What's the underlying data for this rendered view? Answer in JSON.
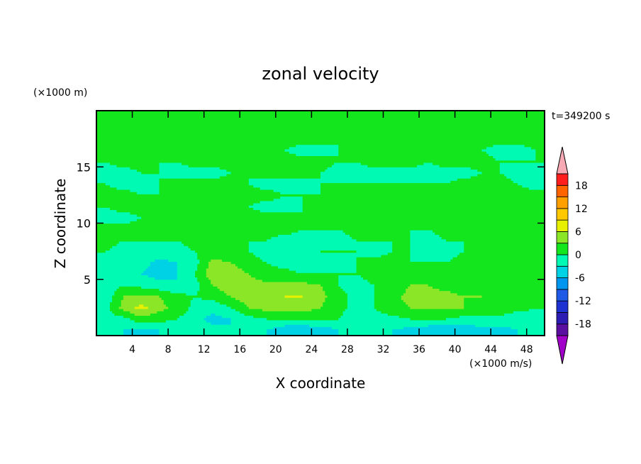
{
  "chart_data": {
    "type": "heatmap",
    "title": "zonal velocity",
    "xlabel": "X coordinate",
    "ylabel": "Z coordinate",
    "x_unit_label": "(×1000 m/s)",
    "y_unit_label": "(×1000 m)",
    "time_label": "t=349200 s",
    "xlim": [
      0,
      50
    ],
    "ylim": [
      0,
      20
    ],
    "x_ticks": [
      4,
      8,
      12,
      16,
      20,
      24,
      28,
      32,
      36,
      40,
      44,
      48
    ],
    "y_ticks": [
      5,
      10,
      15
    ],
    "grid": false,
    "legend": "right",
    "colorbar": {
      "range": [
        -21,
        21
      ],
      "step": 3,
      "tick_labels": [
        18,
        12,
        6,
        0,
        -6,
        -12,
        -18
      ],
      "levels": [
        {
          "min": -21,
          "max": -18,
          "color": "#5a0fa0"
        },
        {
          "min": -18,
          "max": -15,
          "color": "#2d1cb4"
        },
        {
          "min": -15,
          "max": -12,
          "color": "#1e32d2"
        },
        {
          "min": -12,
          "max": -9,
          "color": "#1e5ae6"
        },
        {
          "min": -9,
          "max": -6,
          "color": "#0096f0"
        },
        {
          "min": -6,
          "max": -3,
          "color": "#00d2e6"
        },
        {
          "min": -3,
          "max": 0,
          "color": "#00fab4"
        },
        {
          "min": 0,
          "max": 3,
          "color": "#14e61e"
        },
        {
          "min": 3,
          "max": 6,
          "color": "#8ce628"
        },
        {
          "min": 6,
          "max": 9,
          "color": "#e6f000"
        },
        {
          "min": 9,
          "max": 12,
          "color": "#ffc800"
        },
        {
          "min": 12,
          "max": 15,
          "color": "#ffa000"
        },
        {
          "min": 15,
          "max": 18,
          "color": "#ff6400"
        },
        {
          "min": 18,
          "max": 21,
          "color": "#ff1e1e"
        }
      ],
      "under_color": "#a000c8",
      "over_color": "#f8aab4"
    },
    "field": {
      "x_centers": [
        1,
        3,
        5,
        7,
        9,
        11,
        13,
        15,
        17,
        19,
        21,
        23,
        25,
        27,
        29,
        31,
        33,
        35,
        37,
        39,
        41,
        43,
        45,
        47,
        49
      ],
      "z_centers": [
        0.5,
        1.5,
        2.5,
        3.5,
        4.5,
        5.5,
        6.5,
        7.5,
        8.5,
        9.5,
        10.5,
        11.5,
        12.5,
        13.5,
        14.5,
        15.5,
        16.5,
        17.5,
        18.5,
        19.5
      ],
      "values": [
        [
          -2,
          -3,
          -4,
          -3,
          -2,
          -1,
          -2,
          -3,
          -3,
          -3,
          -5,
          -6,
          -5,
          -3,
          -2,
          -2,
          -3,
          -4,
          -5,
          -6,
          -5,
          -4,
          -4,
          -3,
          -2
        ],
        [
          -1,
          -1,
          2,
          1,
          0,
          -2,
          -4,
          -3,
          -1,
          0,
          0,
          1,
          1,
          0,
          -2,
          -1,
          -1,
          0,
          0,
          0,
          -1,
          -1,
          -1,
          -2,
          -1
        ],
        [
          -1,
          4,
          7,
          4,
          2,
          -1,
          -2,
          0,
          3,
          4,
          4,
          4,
          3,
          1,
          -1,
          0,
          2,
          3,
          3,
          3,
          3,
          2,
          2,
          1,
          0
        ],
        [
          -2,
          3,
          4,
          3,
          1,
          0,
          1,
          3,
          5,
          5,
          6,
          6,
          4,
          1,
          -1,
          0,
          2,
          4,
          4,
          4,
          3,
          3,
          2,
          1,
          0
        ],
        [
          -2,
          0,
          -1,
          -2,
          -3,
          -1,
          3,
          5,
          4,
          4,
          4,
          4,
          3,
          0,
          -1,
          0,
          1,
          3,
          3,
          2,
          1,
          2,
          1,
          0,
          0
        ],
        [
          -1,
          -1,
          -3,
          -4,
          -3,
          0,
          5,
          5,
          3,
          1,
          1,
          0,
          0,
          0,
          0,
          1,
          2,
          1,
          1,
          0,
          0,
          0,
          0,
          0,
          0
        ],
        [
          -1,
          -2,
          -2,
          -4,
          -3,
          -1,
          4,
          3,
          1,
          0,
          -1,
          -2,
          -2,
          -1,
          0,
          1,
          1,
          0,
          0,
          0,
          1,
          2,
          1,
          1,
          0
        ],
        [
          0,
          -1,
          -1,
          -1,
          -1,
          0,
          1,
          1,
          0,
          -1,
          -1,
          -1,
          0,
          0,
          0,
          -1,
          0,
          0,
          -1,
          -1,
          0,
          0,
          0,
          1,
          0
        ],
        [
          1,
          0,
          0,
          0,
          0,
          1,
          1,
          1,
          0,
          0,
          -1,
          -1,
          -1,
          -1,
          0,
          0,
          0,
          0,
          -1,
          0,
          0,
          0,
          0,
          0,
          1
        ],
        [
          1,
          1,
          1,
          1,
          1,
          1,
          2,
          1,
          1,
          1,
          1,
          0,
          0,
          0,
          1,
          1,
          0,
          0,
          0,
          1,
          1,
          1,
          1,
          1,
          1
        ],
        [
          -1,
          -1,
          0,
          0,
          0,
          0,
          0,
          0,
          1,
          1,
          1,
          0,
          0,
          0,
          0,
          0,
          1,
          1,
          1,
          0,
          0,
          0,
          0,
          0,
          0
        ],
        [
          0,
          1,
          1,
          0,
          0,
          1,
          1,
          1,
          0,
          -1,
          -1,
          0,
          1,
          1,
          0,
          0,
          0,
          1,
          1,
          1,
          0,
          0,
          1,
          1,
          0
        ],
        [
          1,
          1,
          0,
          0,
          1,
          1,
          0,
          0,
          1,
          1,
          0,
          0,
          0,
          0,
          0,
          1,
          1,
          1,
          0,
          0,
          0,
          1,
          1,
          1,
          1
        ],
        [
          0,
          -1,
          -1,
          0,
          1,
          1,
          1,
          1,
          0,
          -1,
          -1,
          -1,
          0,
          0,
          0,
          0,
          0,
          0,
          0,
          0,
          1,
          1,
          1,
          0,
          -1
        ],
        [
          -1,
          -1,
          0,
          0,
          -1,
          -1,
          -1,
          0,
          0,
          1,
          1,
          1,
          0,
          -1,
          -1,
          -1,
          -1,
          -1,
          -1,
          -1,
          -1,
          0,
          0,
          -1,
          -1
        ],
        [
          0,
          1,
          1,
          0,
          0,
          1,
          1,
          1,
          0,
          0,
          1,
          1,
          1,
          0,
          0,
          1,
          1,
          1,
          0,
          1,
          1,
          1,
          0,
          0,
          0
        ],
        [
          0,
          0,
          0,
          1,
          1,
          0,
          0,
          0,
          1,
          1,
          0,
          -1,
          -1,
          0,
          1,
          1,
          0,
          0,
          0,
          1,
          1,
          0,
          -1,
          -1,
          0
        ],
        [
          1,
          1,
          1,
          0,
          0,
          1,
          1,
          1,
          1,
          1,
          1,
          1,
          1,
          0,
          0,
          0,
          1,
          1,
          1,
          1,
          1,
          1,
          1,
          1,
          1
        ],
        [
          0,
          0,
          1,
          1,
          1,
          0,
          0,
          0,
          1,
          1,
          0,
          0,
          0,
          1,
          1,
          1,
          0,
          0,
          0,
          0,
          1,
          1,
          1,
          0,
          0
        ],
        [
          1,
          0,
          0,
          0,
          1,
          1,
          1,
          1,
          0,
          0,
          1,
          1,
          1,
          1,
          0,
          0,
          0,
          1,
          1,
          1,
          0,
          0,
          0,
          1,
          1
        ]
      ]
    }
  }
}
